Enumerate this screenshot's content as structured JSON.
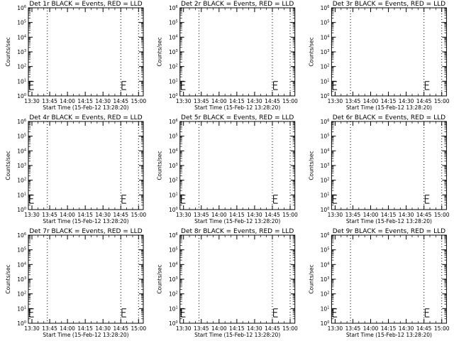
{
  "colors": {
    "background": "#ffffff",
    "axes": "#000000",
    "events": "#000000",
    "lld": "#ff0000"
  },
  "chart_data": {
    "type": "line",
    "layout": "3x3 grid",
    "shared": {
      "xlabel": "Start Time (15-Feb-12 13:28:20)",
      "ylabel": "Counts/sec",
      "xlim": [
        "13:27",
        "15:04"
      ],
      "xticks": [
        "13:30",
        "13:45",
        "14:00",
        "14:15",
        "14:30",
        "14:45",
        "15:00"
      ],
      "yscale": "log",
      "ylim": [
        1,
        1000000
      ],
      "yticks_exponents": [
        "0",
        "1",
        "2",
        "3",
        "4",
        "5",
        "6"
      ],
      "grid": false,
      "dotted_vertical_lines": [
        "13:43",
        "14:45",
        "15:00"
      ],
      "events_marks": [
        {
          "time": "13:28",
          "ylow": 2.7,
          "ymid": 5.5,
          "yhigh": 9.5
        },
        {
          "time": "14:46",
          "ylow": 2.7,
          "ymid": 5.5,
          "yhigh": 9.5
        }
      ]
    },
    "panels": [
      {
        "title": "Det 1r BLACK = Events, RED = LLD"
      },
      {
        "title": "Det 2r BLACK = Events, RED = LLD"
      },
      {
        "title": "Det 3r BLACK = Events, RED = LLD"
      },
      {
        "title": "Det 4r BLACK = Events, RED = LLD"
      },
      {
        "title": "Det 5r BLACK = Events, RED = LLD"
      },
      {
        "title": "Det 6r BLACK = Events, RED = LLD"
      },
      {
        "title": "Det 7r BLACK = Events, RED = LLD"
      },
      {
        "title": "Det 8r BLACK = Events, RED = LLD"
      },
      {
        "title": "Det 9r BLACK = Events, RED = LLD"
      }
    ]
  }
}
